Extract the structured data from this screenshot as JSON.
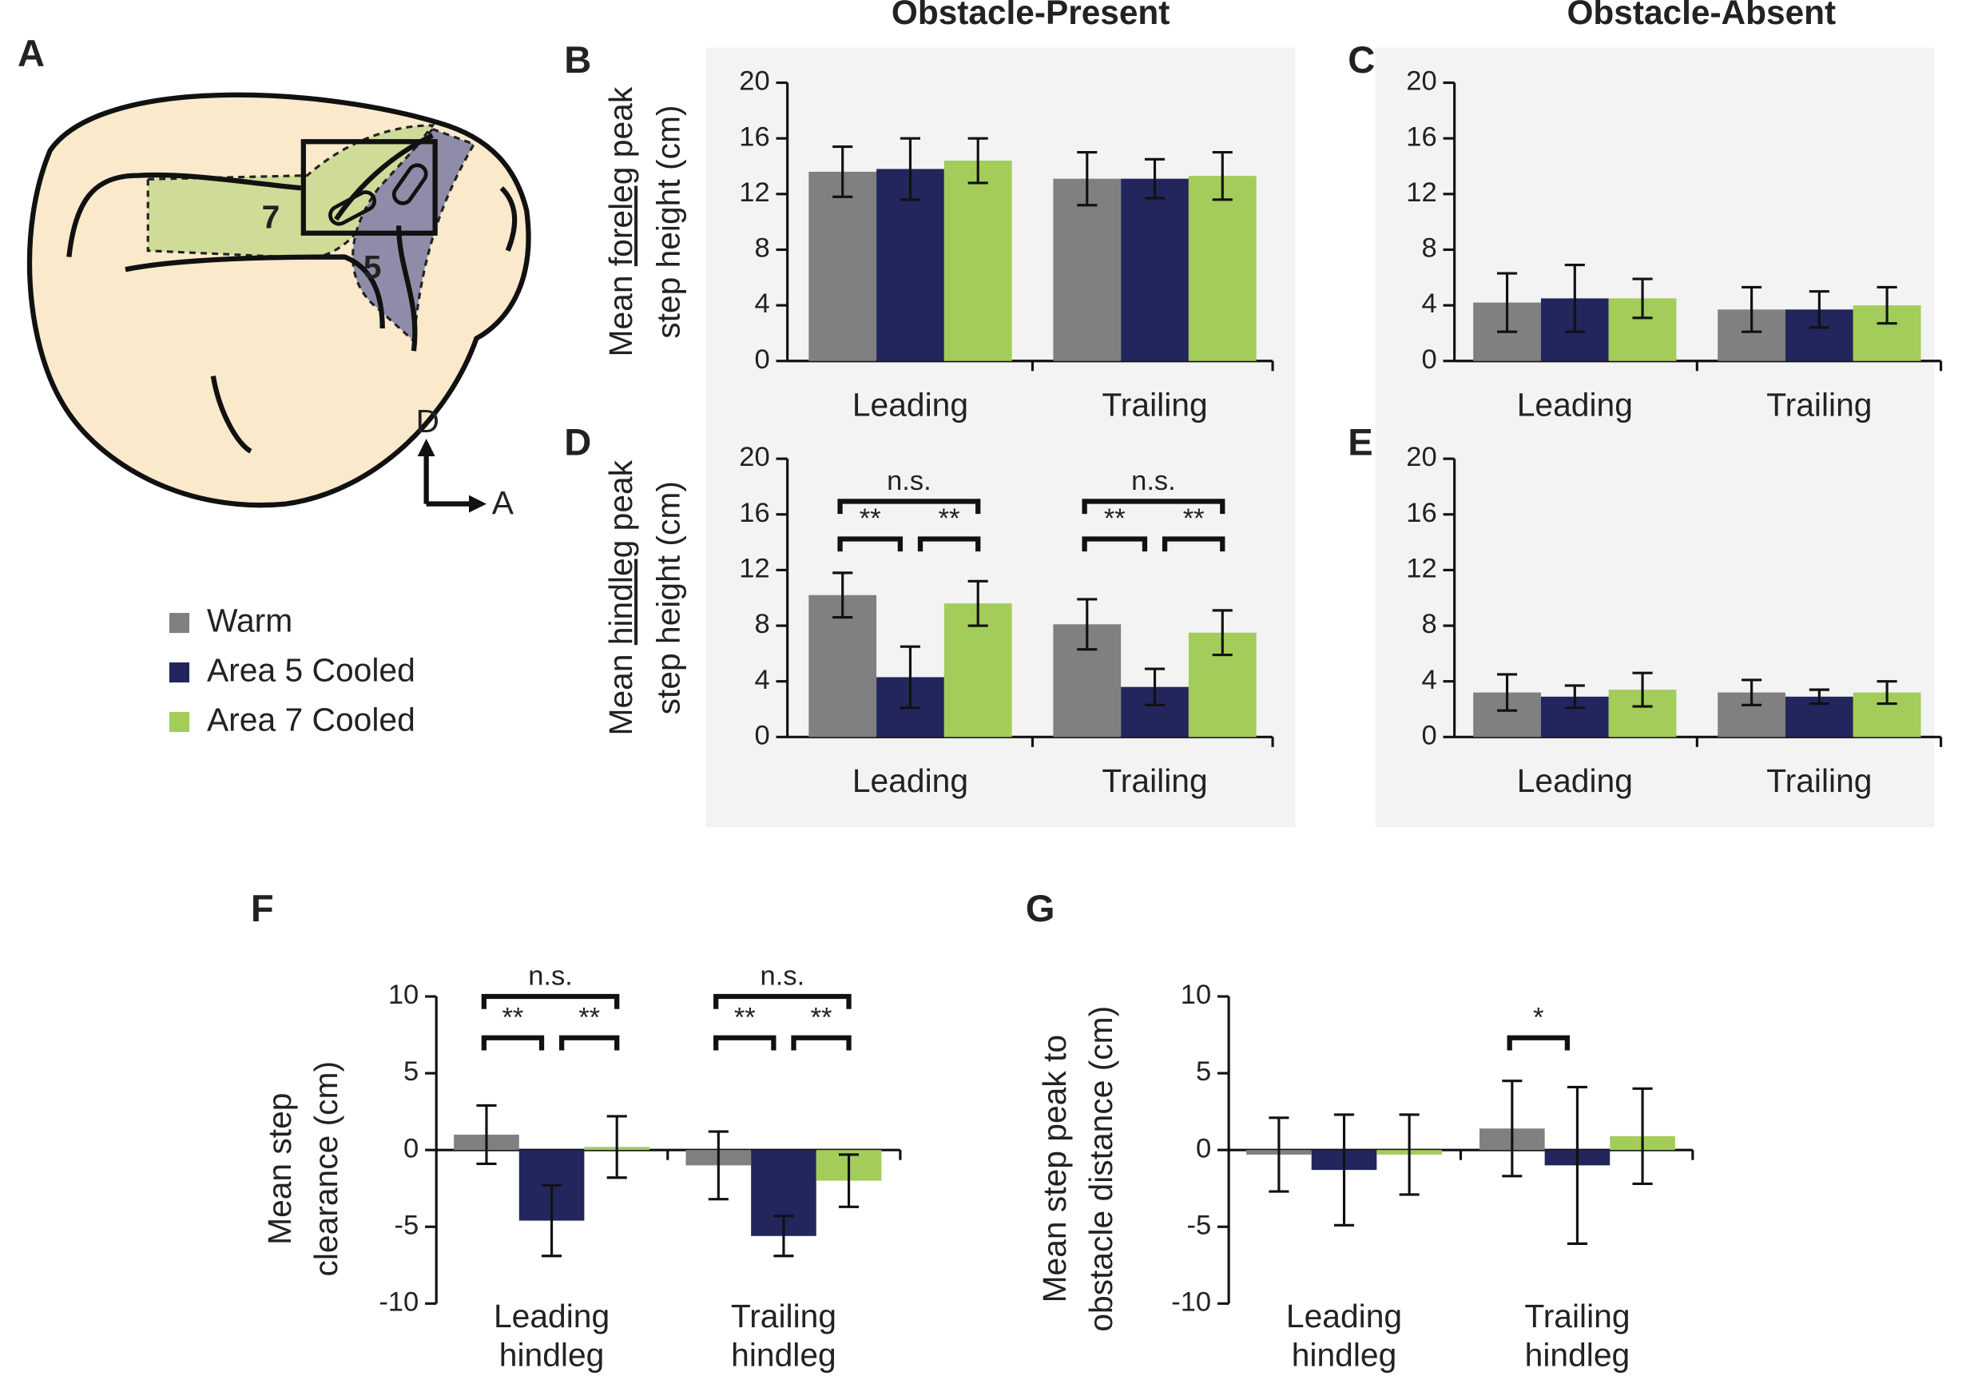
{
  "column_titles": [
    "Obstacle-Present",
    "Obstacle-Absent"
  ],
  "diagram": {
    "panel": "A",
    "regions": [
      "7",
      "5"
    ],
    "axes": [
      "D",
      "A"
    ]
  },
  "legend": [
    {
      "name": "Warm",
      "color": "#808080"
    },
    {
      "name": "Area 5 Cooled",
      "color": "#23265c"
    },
    {
      "name": "Area 7 Cooled",
      "color": "#a3cc5a"
    }
  ],
  "chart_data": [
    {
      "type": "bar",
      "panel": "B",
      "ylabel": {
        "before": "Mean ",
        "underlined": "foreleg",
        "after": " peak",
        "line2": "step height (cm)"
      },
      "categories": [
        "Leading",
        "Trailing"
      ],
      "series": [
        {
          "color": "#808080",
          "values": [
            13.6,
            13.1
          ],
          "errors": [
            1.8,
            1.9
          ]
        },
        {
          "color": "#23265c",
          "values": [
            13.8,
            13.1
          ],
          "errors": [
            2.2,
            1.4
          ]
        },
        {
          "color": "#a3cc5a",
          "values": [
            14.4,
            13.3
          ],
          "errors": [
            1.6,
            1.7
          ]
        }
      ],
      "ylim": [
        0,
        20
      ],
      "yticks": [
        0,
        4,
        8,
        12,
        16,
        20
      ]
    },
    {
      "type": "bar",
      "panel": "C",
      "categories": [
        "Leading",
        "Trailing"
      ],
      "series": [
        {
          "color": "#808080",
          "values": [
            4.2,
            3.7
          ],
          "errors": [
            2.1,
            1.6
          ]
        },
        {
          "color": "#23265c",
          "values": [
            4.5,
            3.7
          ],
          "errors": [
            2.4,
            1.3
          ]
        },
        {
          "color": "#a3cc5a",
          "values": [
            4.5,
            4.0
          ],
          "errors": [
            1.4,
            1.3
          ]
        }
      ],
      "ylim": [
        0,
        20
      ],
      "yticks": [
        0,
        4,
        8,
        12,
        16,
        20
      ]
    },
    {
      "type": "bar",
      "panel": "D",
      "ylabel": {
        "before": "Mean ",
        "underlined": "hindleg",
        "after": " peak",
        "line2": "step height (cm)"
      },
      "categories": [
        "Leading",
        "Trailing"
      ],
      "series": [
        {
          "color": "#808080",
          "values": [
            10.2,
            8.1
          ],
          "errors": [
            1.6,
            1.8
          ]
        },
        {
          "color": "#23265c",
          "values": [
            4.3,
            3.6
          ],
          "errors": [
            2.2,
            1.3
          ]
        },
        {
          "color": "#a3cc5a",
          "values": [
            9.6,
            7.5
          ],
          "errors": [
            1.6,
            1.6
          ]
        }
      ],
      "annotations": [
        [
          "**",
          "**",
          "n.s."
        ],
        [
          "**",
          "**",
          "n.s."
        ]
      ],
      "ylim": [
        0,
        20
      ],
      "yticks": [
        0,
        4,
        8,
        12,
        16,
        20
      ]
    },
    {
      "type": "bar",
      "panel": "E",
      "categories": [
        "Leading",
        "Trailing"
      ],
      "series": [
        {
          "color": "#808080",
          "values": [
            3.2,
            3.2
          ],
          "errors": [
            1.3,
            0.9
          ]
        },
        {
          "color": "#23265c",
          "values": [
            2.9,
            2.9
          ],
          "errors": [
            0.8,
            0.5
          ]
        },
        {
          "color": "#a3cc5a",
          "values": [
            3.4,
            3.2
          ],
          "errors": [
            1.2,
            0.8
          ]
        }
      ],
      "ylim": [
        0,
        20
      ],
      "yticks": [
        0,
        4,
        8,
        12,
        16,
        20
      ]
    },
    {
      "type": "bar",
      "panel": "F",
      "ylabel": {
        "lines": [
          "Mean step",
          "clearance (cm)"
        ]
      },
      "categories": [
        [
          "Leading",
          "hindleg"
        ],
        [
          "Trailing",
          "hindleg"
        ]
      ],
      "series": [
        {
          "color": "#808080",
          "values": [
            1.0,
            -1.0
          ],
          "errors": [
            1.9,
            2.2
          ]
        },
        {
          "color": "#23265c",
          "values": [
            -4.6,
            -5.6
          ],
          "errors": [
            2.3,
            1.3
          ]
        },
        {
          "color": "#a3cc5a",
          "values": [
            0.2,
            -2.0
          ],
          "errors": [
            2.0,
            1.7
          ]
        }
      ],
      "annotations": [
        [
          "**",
          "**",
          "n.s."
        ],
        [
          "**",
          "**",
          "n.s."
        ]
      ],
      "ylim": [
        -10,
        10
      ],
      "yticks": [
        -10,
        -5,
        0,
        5,
        10
      ]
    },
    {
      "type": "bar",
      "panel": "G",
      "ylabel": {
        "lines": [
          "Mean step peak to",
          "obstacle distance (cm)"
        ]
      },
      "categories": [
        [
          "Leading",
          "hindleg"
        ],
        [
          "Trailing",
          "hindleg"
        ]
      ],
      "series": [
        {
          "color": "#808080",
          "values": [
            -0.3,
            1.4
          ],
          "errors": [
            2.4,
            3.1
          ]
        },
        {
          "color": "#23265c",
          "values": [
            -1.3,
            -1.0
          ],
          "errors": [
            3.6,
            5.1
          ]
        },
        {
          "color": "#a3cc5a",
          "values": [
            -0.3,
            0.9
          ],
          "errors": [
            2.6,
            3.1
          ]
        }
      ],
      "annotations": [
        [],
        [
          "*"
        ]
      ],
      "ylim": [
        -10,
        10
      ],
      "yticks": [
        -10,
        -5,
        0,
        5,
        10
      ]
    }
  ]
}
